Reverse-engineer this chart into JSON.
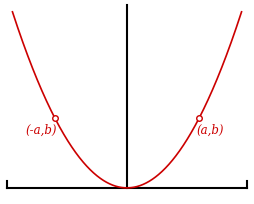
{
  "bg_color": "#ffffff",
  "curve_color": "#cc0000",
  "axis_color": "#000000",
  "point_color": "#cc0000",
  "label_color": "#cc0000",
  "x_range": [
    -2.3,
    2.3
  ],
  "point_x": 1.45,
  "point_y": 2.1025,
  "label_left": "(-a,b)",
  "label_right": "(a,b)",
  "font_size": 8.5,
  "xlim": [
    -2.55,
    2.55
  ],
  "ylim": [
    -0.3,
    3.5
  ],
  "x_axis_y": 0.0,
  "y_axis_top": 3.4,
  "x_axis_left": -2.4,
  "x_axis_right": 2.4
}
